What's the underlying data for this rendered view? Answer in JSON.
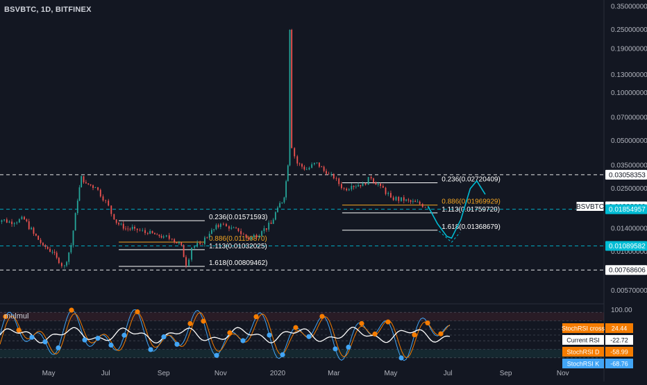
{
  "header": {
    "symbol": "BSVBTC, 1D, BITFINEX"
  },
  "indicator": {
    "name": "mulmul"
  },
  "colors": {
    "background": "#131722",
    "candle_up": "#26a69a",
    "candle_down": "#ef5350",
    "fib_white": "#ffffff",
    "fib_orange": "#f5a623",
    "level_white": "#ffffff",
    "level_cyan": "#00bcd4",
    "projection": "#00bcd4",
    "rsi_line": "#ffffff",
    "stoch_k": "#42a5f5",
    "stoch_d": "#f57c00",
    "marker_orange": "#f57c00",
    "marker_blue": "#42a5f5"
  },
  "chart_data": {
    "type": "line",
    "title": "BSVBTC, 1D, BITFINEX",
    "scale": "log",
    "x_ticks": [
      "May",
      "Jul",
      "Sep",
      "Nov",
      "2020",
      "Mar",
      "May",
      "Jul",
      "Sep",
      "Nov"
    ],
    "y_ticks": [
      "0.35000000",
      "0.25000000",
      "0.19000000",
      "0.13000000",
      "0.10000000",
      "0.07000000",
      "0.05000000",
      "0.03500000",
      "0.02500000",
      "0.01400000",
      "0.01000000",
      "0.00570000"
    ],
    "y_tick_values": [
      0.35,
      0.25,
      0.19,
      0.13,
      0.1,
      0.07,
      0.05,
      0.035,
      0.025,
      0.014,
      0.01,
      0.0057
    ],
    "series": [
      {
        "name": "BSVBTC",
        "points": [
          [
            "2019-03-01",
            0.0165
          ],
          [
            "2019-03-20",
            0.0155
          ],
          [
            "2019-04-05",
            0.016
          ],
          [
            "2019-04-15",
            0.013
          ],
          [
            "2019-04-25",
            0.011
          ],
          [
            "2019-05-05",
            0.01
          ],
          [
            "2019-05-12",
            0.0085
          ],
          [
            "2019-05-18",
            0.0082
          ],
          [
            "2019-05-25",
            0.011
          ],
          [
            "2019-06-01",
            0.021
          ],
          [
            "2019-06-05",
            0.03
          ],
          [
            "2019-06-10",
            0.027
          ],
          [
            "2019-06-20",
            0.0255
          ],
          [
            "2019-07-01",
            0.021
          ],
          [
            "2019-07-10",
            0.016
          ],
          [
            "2019-07-20",
            0.014
          ],
          [
            "2019-08-01",
            0.014
          ],
          [
            "2019-08-15",
            0.013
          ],
          [
            "2019-08-25",
            0.0128
          ],
          [
            "2019-09-01",
            0.0125
          ],
          [
            "2019-09-10",
            0.012
          ],
          [
            "2019-09-20",
            0.011
          ],
          [
            "2019-09-25",
            0.0082
          ],
          [
            "2019-10-01",
            0.0106
          ],
          [
            "2019-10-10",
            0.0112
          ],
          [
            "2019-10-20",
            0.013
          ],
          [
            "2019-11-01",
            0.015
          ],
          [
            "2019-11-10",
            0.014
          ],
          [
            "2019-11-20",
            0.0135
          ],
          [
            "2019-12-01",
            0.012
          ],
          [
            "2019-12-15",
            0.0135
          ],
          [
            "2019-12-25",
            0.015
          ],
          [
            "2020-01-01",
            0.019
          ],
          [
            "2020-01-08",
            0.022
          ],
          [
            "2020-01-12",
            0.035
          ],
          [
            "2020-01-14",
            0.25
          ],
          [
            "2020-01-16",
            0.045
          ],
          [
            "2020-01-22",
            0.036
          ],
          [
            "2020-02-01",
            0.033
          ],
          [
            "2020-02-12",
            0.0365
          ],
          [
            "2020-02-22",
            0.031
          ],
          [
            "2020-03-01",
            0.029
          ],
          [
            "2020-03-12",
            0.025
          ],
          [
            "2020-03-20",
            0.026
          ],
          [
            "2020-04-01",
            0.027
          ],
          [
            "2020-04-10",
            0.029
          ],
          [
            "2020-04-20",
            0.026
          ],
          [
            "2020-05-01",
            0.022
          ],
          [
            "2020-05-15",
            0.021
          ],
          [
            "2020-06-01",
            0.02
          ],
          [
            "2020-06-10",
            0.0193
          ]
        ]
      },
      {
        "name": "Projection",
        "points": [
          [
            "2020-06-10",
            0.0193
          ],
          [
            "2020-06-20",
            0.015
          ],
          [
            "2020-06-30",
            0.0125
          ],
          [
            "2020-07-05",
            0.0122
          ],
          [
            "2020-07-15",
            0.016
          ],
          [
            "2020-07-25",
            0.025
          ],
          [
            "2020-08-01",
            0.028
          ],
          [
            "2020-08-10",
            0.023
          ]
        ]
      }
    ],
    "ylim": [
      0.0048,
      0.37
    ],
    "xlim": [
      "2019-03-10",
      "2020-12-15"
    ]
  },
  "price_labels": [
    {
      "text": "0.03058353",
      "value": 0.03058353,
      "style": "white"
    },
    {
      "text": "0.01933000",
      "value": 0.01933,
      "style": "symbol"
    },
    {
      "text": "0.01854957",
      "value": 0.01854957,
      "style": "cyan"
    },
    {
      "text": "0.01089582",
      "value": 0.01089582,
      "style": "cyan"
    },
    {
      "text": "0.00768606",
      "value": 0.00768606,
      "style": "white"
    }
  ],
  "symbol_tag": "BSVBTC",
  "horizontal_levels": [
    {
      "value": 0.03058353,
      "style": "white"
    },
    {
      "value": 0.01854957,
      "style": "cyan"
    },
    {
      "value": 0.01089582,
      "style": "cyan"
    },
    {
      "value": 0.00768606,
      "style": "white"
    }
  ],
  "fib_groups": [
    {
      "x_start": "2019-07-15",
      "x_end": "2019-10-15",
      "levels": [
        {
          "label": "0.236(0.01571593)",
          "value": 0.01571593,
          "color": "white"
        },
        {
          "label": "0.886(0.01150870)",
          "value": 0.0115087,
          "color": "orange"
        },
        {
          "label": "1.113(0.01032025)",
          "value": 0.01032025,
          "color": "white"
        },
        {
          "label": "1.618(0.00809462)",
          "value": 0.00809462,
          "color": "white"
        }
      ]
    },
    {
      "x_start": "2020-03-10",
      "x_end": "2020-06-20",
      "levels": [
        {
          "label": "0.236(0.02720409)",
          "value": 0.02720409,
          "color": "white"
        },
        {
          "label": "0.886(0.01969929)",
          "value": 0.01969929,
          "color": "orange"
        },
        {
          "label": "1.113(0.01759720)",
          "value": 0.0175972,
          "color": "white"
        },
        {
          "label": "1.618(0.01368679)",
          "value": 0.01368679,
          "color": "white"
        }
      ]
    }
  ],
  "oscillator": {
    "top_tick": "100.00",
    "top_value": 100,
    "bottom_value": -100,
    "labels": [
      {
        "name": "StochRSI cross",
        "value": "24.44",
        "color": "#f57c00"
      },
      {
        "name": "Current RSI",
        "value": "-22.72",
        "color": "#ffffff"
      },
      {
        "name": "StochRSI D",
        "value": "-58.99",
        "color": "#f57c00"
      },
      {
        "name": "StochRSI K",
        "value": "-68.76",
        "color": "#42a5f5"
      }
    ]
  }
}
